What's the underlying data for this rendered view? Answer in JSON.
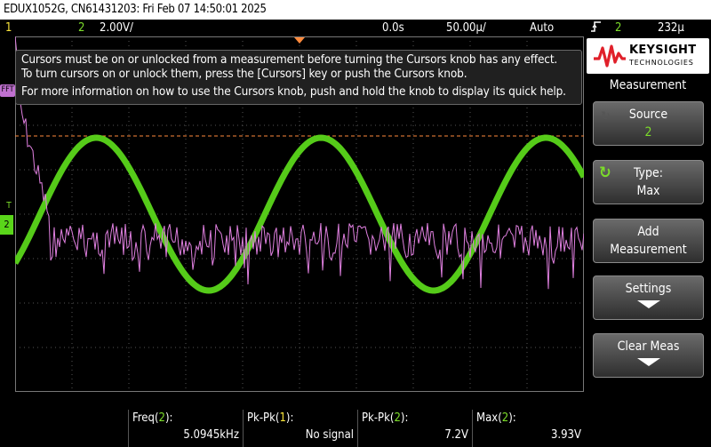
{
  "title_bar": {
    "text": "EDUX1052G, CN61431203: Fri Feb 07 14:50:01 2025"
  },
  "status_bar": {
    "ch1_label": "1",
    "ch2_label": "2",
    "ch2_scale": "2.00V/",
    "time_delay": "0.0s",
    "time_scale": "50.00µ/",
    "trigger_mode": "Auto",
    "trigger_source": "2",
    "trigger_level": "232µ"
  },
  "colors": {
    "ch2": "#5ad61a",
    "math": "#e080e0",
    "cursor": "#ff8a3c",
    "ch1": "#f6e23a"
  },
  "markers": {
    "fft": "FFT",
    "ch2": "2",
    "trig": "T"
  },
  "message": {
    "line1": "Cursors must be on or unlocked from a measurement before turning the Cursors knob has any effect.",
    "line2": "To turn cursors on or unlock them, press the [Cursors] key or push the Cursors knob.",
    "line3": "For more information on how to use the Cursors knob, push and hold the knob to display its quick help."
  },
  "logo": {
    "brand": "KEYSIGHT",
    "sub": "TECHNOLOGIES"
  },
  "menu": {
    "title": "Measurement",
    "source_label": "Source",
    "source_value": "2",
    "type_label": "Type:",
    "type_value": "Max",
    "add_label_1": "Add",
    "add_label_2": "Measurement",
    "settings_label": "Settings",
    "clear_label": "Clear Meas"
  },
  "measurements": [
    {
      "name": "Freq",
      "ch": "2",
      "value": "5.0945kHz"
    },
    {
      "name": "Pk-Pk",
      "ch": "1",
      "value": "No signal"
    },
    {
      "name": "Pk-Pk",
      "ch": "2",
      "value": "7.2V"
    },
    {
      "name": "Max",
      "ch": "2",
      "value": "3.93V"
    }
  ]
}
